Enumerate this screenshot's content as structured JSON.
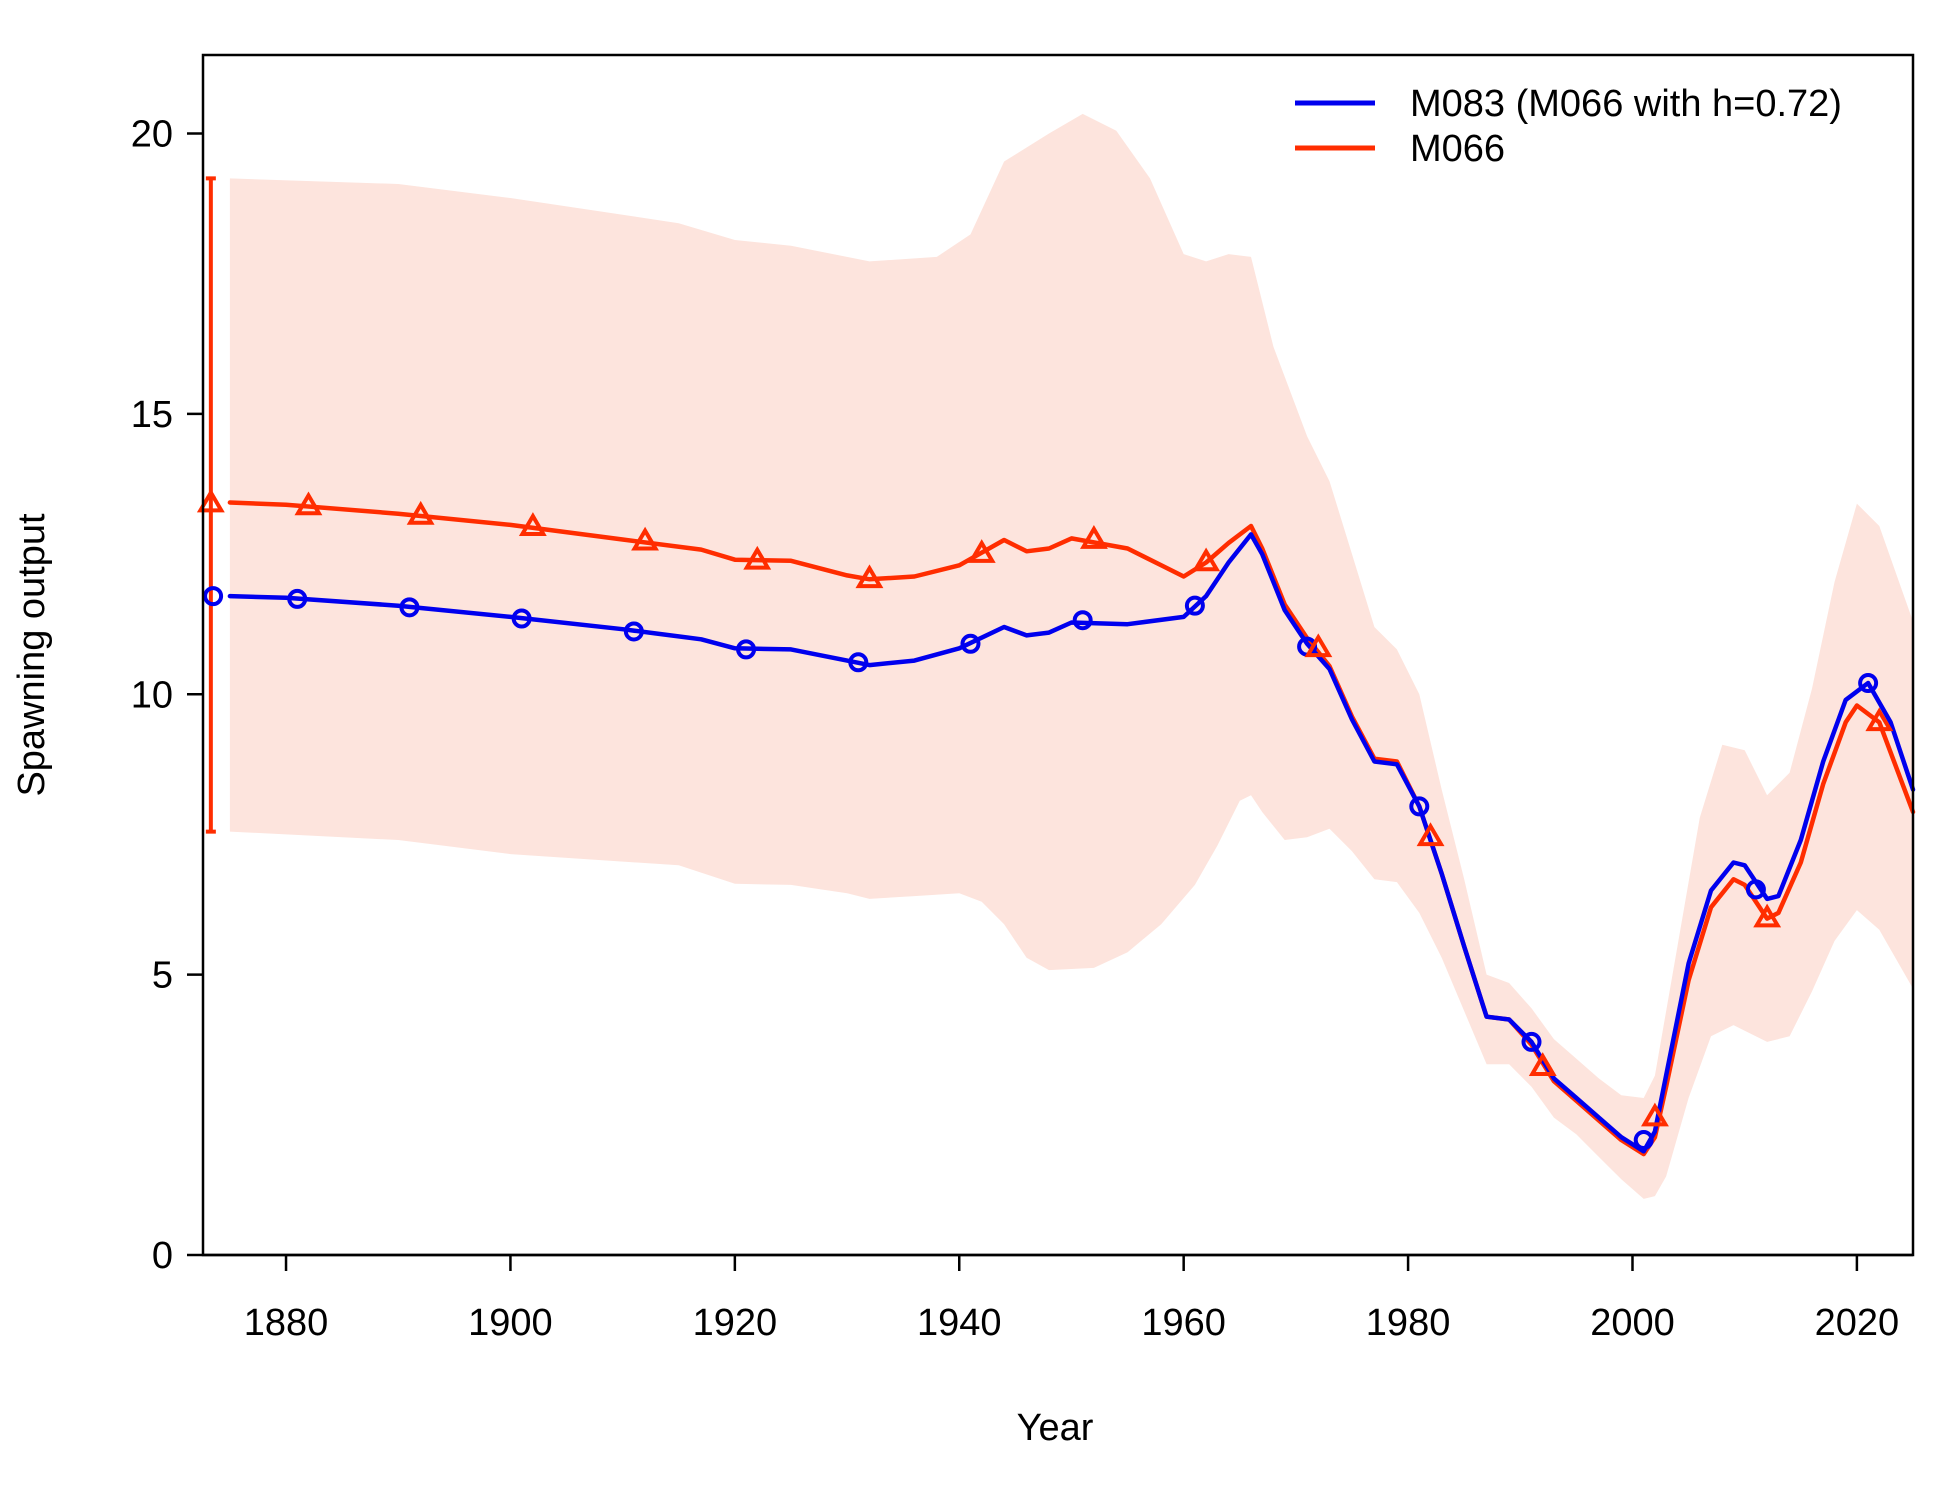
{
  "chart_data": {
    "type": "line",
    "title": "",
    "xlabel": "Year",
    "ylabel": "Spawning output",
    "xlim": [
      1872.6,
      2025
    ],
    "ylim": [
      0,
      21.4
    ],
    "x_ticks": [
      1880,
      1900,
      1920,
      1940,
      1960,
      1980,
      2000,
      2020
    ],
    "y_ticks": [
      0,
      5,
      10,
      15,
      20
    ],
    "legend_position": "top-right",
    "series": [
      {
        "name": "M083 (M066 with h=0.72)",
        "color": "#0000ee",
        "marker": "circle",
        "initial_equilibrium": {
          "x": 1873.5,
          "y": 11.75
        },
        "marker_points": [
          [
            1881,
            11.7
          ],
          [
            1891,
            11.55
          ],
          [
            1901,
            11.35
          ],
          [
            1911,
            11.12
          ],
          [
            1921,
            10.8
          ],
          [
            1931,
            10.57
          ],
          [
            1941,
            10.9
          ],
          [
            1951,
            11.32
          ],
          [
            1961,
            11.58
          ],
          [
            1971,
            10.85
          ],
          [
            1981,
            8.0
          ],
          [
            1991,
            3.8
          ],
          [
            2001,
            2.05
          ],
          [
            2011,
            6.52
          ],
          [
            2021,
            10.2
          ]
        ],
        "points": [
          [
            1875,
            11.75
          ],
          [
            1880,
            11.72
          ],
          [
            1890,
            11.58
          ],
          [
            1900,
            11.38
          ],
          [
            1910,
            11.16
          ],
          [
            1917,
            10.98
          ],
          [
            1920,
            10.82
          ],
          [
            1925,
            10.8
          ],
          [
            1930,
            10.6
          ],
          [
            1932,
            10.52
          ],
          [
            1936,
            10.6
          ],
          [
            1940,
            10.82
          ],
          [
            1944,
            11.2
          ],
          [
            1946,
            11.05
          ],
          [
            1948,
            11.1
          ],
          [
            1950,
            11.28
          ],
          [
            1955,
            11.25
          ],
          [
            1960,
            11.38
          ],
          [
            1962,
            11.75
          ],
          [
            1964,
            12.35
          ],
          [
            1966,
            12.85
          ],
          [
            1967,
            12.5
          ],
          [
            1969,
            11.5
          ],
          [
            1971,
            10.9
          ],
          [
            1973,
            10.45
          ],
          [
            1975,
            9.55
          ],
          [
            1977,
            8.8
          ],
          [
            1979,
            8.75
          ],
          [
            1981,
            8.0
          ],
          [
            1983,
            6.8
          ],
          [
            1985,
            5.5
          ],
          [
            1987,
            4.25
          ],
          [
            1989,
            4.2
          ],
          [
            1991,
            3.8
          ],
          [
            1993,
            3.15
          ],
          [
            1995,
            2.8
          ],
          [
            1997,
            2.45
          ],
          [
            1999,
            2.1
          ],
          [
            2001,
            1.85
          ],
          [
            2002,
            2.2
          ],
          [
            2003,
            3.2
          ],
          [
            2005,
            5.2
          ],
          [
            2007,
            6.5
          ],
          [
            2009,
            7.0
          ],
          [
            2010,
            6.95
          ],
          [
            2012,
            6.35
          ],
          [
            2013,
            6.4
          ],
          [
            2015,
            7.4
          ],
          [
            2017,
            8.8
          ],
          [
            2019,
            9.9
          ],
          [
            2021,
            10.2
          ],
          [
            2023,
            9.5
          ],
          [
            2025,
            8.3
          ]
        ]
      },
      {
        "name": "M066",
        "color": "#ff2d00",
        "marker": "triangle",
        "initial_equilibrium": {
          "x": 1873.3,
          "y": 13.4,
          "ci_low": 7.55,
          "ci_high": 19.2
        },
        "marker_points": [
          [
            1882,
            13.35
          ],
          [
            1892,
            13.18
          ],
          [
            1902,
            12.98
          ],
          [
            1912,
            12.72
          ],
          [
            1922,
            12.38
          ],
          [
            1932,
            12.05
          ],
          [
            1942,
            12.5
          ],
          [
            1952,
            12.75
          ],
          [
            1962,
            12.35
          ],
          [
            1972,
            10.82
          ],
          [
            1982,
            7.45
          ],
          [
            1992,
            3.35
          ],
          [
            2002,
            2.45
          ],
          [
            2012,
            6.0
          ],
          [
            2022,
            9.5
          ]
        ],
        "points": [
          [
            1875,
            13.42
          ],
          [
            1880,
            13.38
          ],
          [
            1890,
            13.22
          ],
          [
            1900,
            13.02
          ],
          [
            1910,
            12.76
          ],
          [
            1917,
            12.58
          ],
          [
            1920,
            12.4
          ],
          [
            1925,
            12.38
          ],
          [
            1930,
            12.12
          ],
          [
            1932,
            12.05
          ],
          [
            1936,
            12.1
          ],
          [
            1940,
            12.3
          ],
          [
            1944,
            12.75
          ],
          [
            1946,
            12.55
          ],
          [
            1948,
            12.6
          ],
          [
            1950,
            12.78
          ],
          [
            1955,
            12.6
          ],
          [
            1958,
            12.3
          ],
          [
            1960,
            12.1
          ],
          [
            1962,
            12.35
          ],
          [
            1964,
            12.7
          ],
          [
            1966,
            13.0
          ],
          [
            1967,
            12.6
          ],
          [
            1969,
            11.6
          ],
          [
            1971,
            11.0
          ],
          [
            1973,
            10.5
          ],
          [
            1975,
            9.6
          ],
          [
            1977,
            8.85
          ],
          [
            1979,
            8.8
          ],
          [
            1981,
            8.0
          ],
          [
            1983,
            6.8
          ],
          [
            1985,
            5.5
          ],
          [
            1987,
            4.25
          ],
          [
            1989,
            4.2
          ],
          [
            1991,
            3.75
          ],
          [
            1993,
            3.1
          ],
          [
            1995,
            2.75
          ],
          [
            1997,
            2.4
          ],
          [
            1999,
            2.05
          ],
          [
            2001,
            1.8
          ],
          [
            2002,
            2.1
          ],
          [
            2003,
            3.0
          ],
          [
            2005,
            4.9
          ],
          [
            2007,
            6.2
          ],
          [
            2009,
            6.7
          ],
          [
            2010,
            6.6
          ],
          [
            2012,
            6.0
          ],
          [
            2013,
            6.1
          ],
          [
            2015,
            7.0
          ],
          [
            2017,
            8.4
          ],
          [
            2019,
            9.5
          ],
          [
            2020,
            9.8
          ],
          [
            2022,
            9.5
          ],
          [
            2025,
            7.9
          ]
        ],
        "confidence_band": {
          "upper": [
            [
              1875,
              19.2
            ],
            [
              1890,
              19.1
            ],
            [
              1900,
              18.85
            ],
            [
              1915,
              18.4
            ],
            [
              1920,
              18.1
            ],
            [
              1925,
              18.0
            ],
            [
              1932,
              17.72
            ],
            [
              1938,
              17.8
            ],
            [
              1941,
              18.2
            ],
            [
              1944,
              19.5
            ],
            [
              1948,
              20.0
            ],
            [
              1951,
              20.35
            ],
            [
              1954,
              20.05
            ],
            [
              1957,
              19.2
            ],
            [
              1960,
              17.85
            ],
            [
              1962,
              17.72
            ],
            [
              1964,
              17.85
            ],
            [
              1966,
              17.8
            ],
            [
              1968,
              16.2
            ],
            [
              1971,
              14.6
            ],
            [
              1973,
              13.8
            ],
            [
              1975,
              12.5
            ],
            [
              1977,
              11.2
            ],
            [
              1979,
              10.8
            ],
            [
              1981,
              10.0
            ],
            [
              1983,
              8.3
            ],
            [
              1985,
              6.7
            ],
            [
              1987,
              5.0
            ],
            [
              1989,
              4.85
            ],
            [
              1991,
              4.4
            ],
            [
              1993,
              3.85
            ],
            [
              1995,
              3.5
            ],
            [
              1997,
              3.15
            ],
            [
              1999,
              2.85
            ],
            [
              2001,
              2.8
            ],
            [
              2002,
              3.2
            ],
            [
              2004,
              5.5
            ],
            [
              2006,
              7.8
            ],
            [
              2008,
              9.1
            ],
            [
              2010,
              9.0
            ],
            [
              2012,
              8.2
            ],
            [
              2014,
              8.6
            ],
            [
              2016,
              10.1
            ],
            [
              2018,
              12.0
            ],
            [
              2020,
              13.4
            ],
            [
              2022,
              13.0
            ],
            [
              2025,
              11.3
            ]
          ],
          "lower": [
            [
              1875,
              7.55
            ],
            [
              1890,
              7.4
            ],
            [
              1900,
              7.15
            ],
            [
              1915,
              6.95
            ],
            [
              1920,
              6.62
            ],
            [
              1925,
              6.6
            ],
            [
              1930,
              6.45
            ],
            [
              1932,
              6.35
            ],
            [
              1936,
              6.4
            ],
            [
              1940,
              6.45
            ],
            [
              1942,
              6.3
            ],
            [
              1944,
              5.9
            ],
            [
              1946,
              5.3
            ],
            [
              1948,
              5.08
            ],
            [
              1952,
              5.12
            ],
            [
              1955,
              5.4
            ],
            [
              1958,
              5.9
            ],
            [
              1961,
              6.6
            ],
            [
              1963,
              7.3
            ],
            [
              1965,
              8.1
            ],
            [
              1966,
              8.2
            ],
            [
              1967,
              7.9
            ],
            [
              1969,
              7.4
            ],
            [
              1971,
              7.45
            ],
            [
              1973,
              7.6
            ],
            [
              1975,
              7.2
            ],
            [
              1977,
              6.7
            ],
            [
              1979,
              6.65
            ],
            [
              1981,
              6.1
            ],
            [
              1983,
              5.3
            ],
            [
              1985,
              4.35
            ],
            [
              1987,
              3.4
            ],
            [
              1989,
              3.4
            ],
            [
              1991,
              3.0
            ],
            [
              1993,
              2.45
            ],
            [
              1995,
              2.15
            ],
            [
              1997,
              1.75
            ],
            [
              1999,
              1.35
            ],
            [
              2001,
              1.0
            ],
            [
              2002,
              1.05
            ],
            [
              2003,
              1.4
            ],
            [
              2005,
              2.8
            ],
            [
              2007,
              3.9
            ],
            [
              2009,
              4.1
            ],
            [
              2010,
              4.0
            ],
            [
              2012,
              3.8
            ],
            [
              2014,
              3.9
            ],
            [
              2016,
              4.7
            ],
            [
              2018,
              5.6
            ],
            [
              2020,
              6.15
            ],
            [
              2022,
              5.8
            ],
            [
              2025,
              4.75
            ]
          ]
        }
      }
    ]
  }
}
